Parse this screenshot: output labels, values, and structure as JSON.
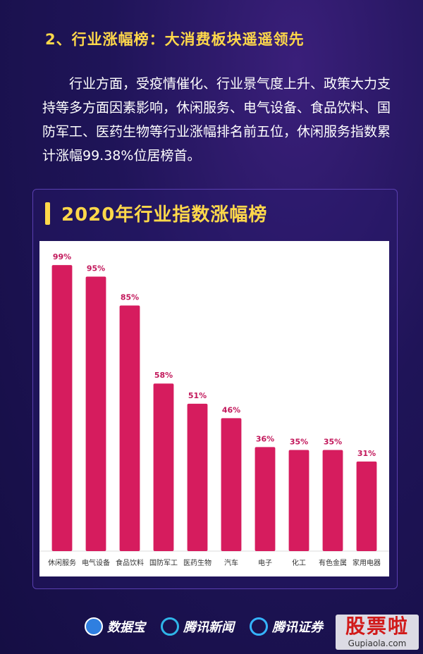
{
  "section": {
    "heading": "2、行业涨幅榜：大消费板块遥遥领先",
    "paragraph": "行业方面，受疫情催化、行业景气度上升、政策大力支持等多方面因素影响，休闲服务、电气设备、食品饮料、国防军工、医药生物等行业涨幅排名前五位，休闲服务指数累计涨幅99.38%位居榜首。"
  },
  "panel": {
    "title": "2020年行业指数涨幅榜"
  },
  "colors": {
    "bar": "#d61c5e",
    "label": "#c2185b",
    "accent": "#ffd84a"
  },
  "chart_data": {
    "type": "bar",
    "title": "2020年行业指数涨幅榜",
    "categories": [
      "休闲服务",
      "电气设备",
      "食品饮料",
      "国防军工",
      "医药生物",
      "汽车",
      "电子",
      "化工",
      "有色金属",
      "家用电器"
    ],
    "values": [
      99,
      95,
      85,
      58,
      51,
      46,
      36,
      35,
      35,
      31
    ],
    "value_labels": [
      "99%",
      "95%",
      "85%",
      "58%",
      "51%",
      "46%",
      "36%",
      "35%",
      "35%",
      "31%"
    ],
    "xlabel": "",
    "ylabel": "",
    "ylim": [
      0,
      100
    ],
    "grid": false,
    "legend": "none"
  },
  "footer": {
    "logos": [
      "数据宝",
      "腾讯新闻",
      "腾讯证券"
    ]
  },
  "watermark": {
    "main": "股票啦",
    "sub": "Gupiaola.com"
  }
}
